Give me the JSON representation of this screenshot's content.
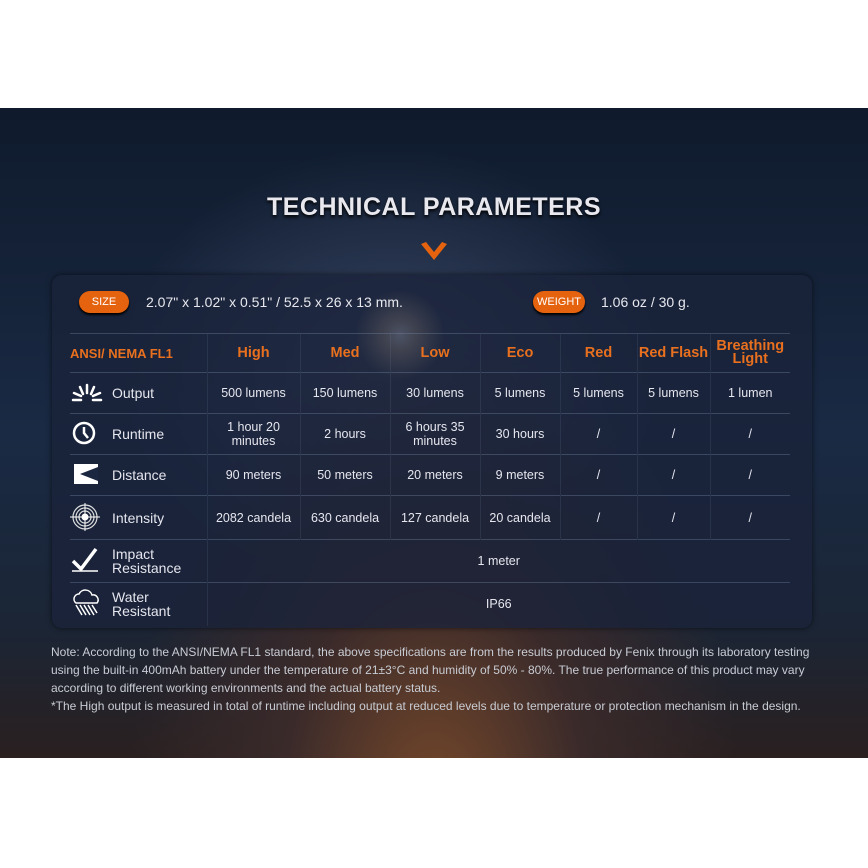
{
  "title": "TECHNICAL PARAMETERS",
  "size": {
    "label": "SIZE",
    "value": "2.07\" x 1.02\" x 0.51\" / 52.5 x 26 x 13 mm."
  },
  "weight": {
    "label": "WEIGHT",
    "value": "1.06 oz / 30 g."
  },
  "accent": "#e5630f",
  "table": {
    "headers": [
      "ANSI/ NEMA  FL1",
      "High",
      "Med",
      "Low",
      "Eco",
      "Red",
      "Red Flash",
      "Breathing Light"
    ],
    "rows": [
      {
        "icon": "sun-burst-icon",
        "label": "Output",
        "cells": [
          "500 lumens",
          "150 lumens",
          "30 lumens",
          "5 lumens",
          "5 lumens",
          "5 lumens",
          "1 lumen"
        ]
      },
      {
        "icon": "clock-icon",
        "label": "Runtime",
        "cells": [
          "1 hour 20 minutes",
          "2 hours",
          "6 hours 35 minutes",
          "30 hours",
          "/",
          "/",
          "/"
        ]
      },
      {
        "icon": "beam-distance-icon",
        "label": "Distance",
        "cells": [
          "90 meters",
          "50 meters",
          "20 meters",
          "9 meters",
          "/",
          "/",
          "/"
        ]
      },
      {
        "icon": "target-icon",
        "label": "Intensity",
        "cells": [
          "2082 candela",
          "630 candela",
          "127 candela",
          "20 candela",
          "/",
          "/",
          "/"
        ]
      },
      {
        "icon": "impact-icon",
        "label": "Impact Resistance",
        "span": "1 meter"
      },
      {
        "icon": "rain-cloud-icon",
        "label": "Water Resistant",
        "span": "IP66"
      }
    ]
  },
  "note": [
    "Note: According to the ANSI/NEMA FL1 standard, the above specifications are from the results produced by Fenix through its laboratory testing using the built-in 400mAh battery under the temperature of 21±3°C and humidity of 50% - 80%. The true performance of this product may vary according to different working environments and the actual battery status.",
    "*The High output is measured in total of runtime including output at reduced levels due to temperature or protection mechanism in the design."
  ]
}
